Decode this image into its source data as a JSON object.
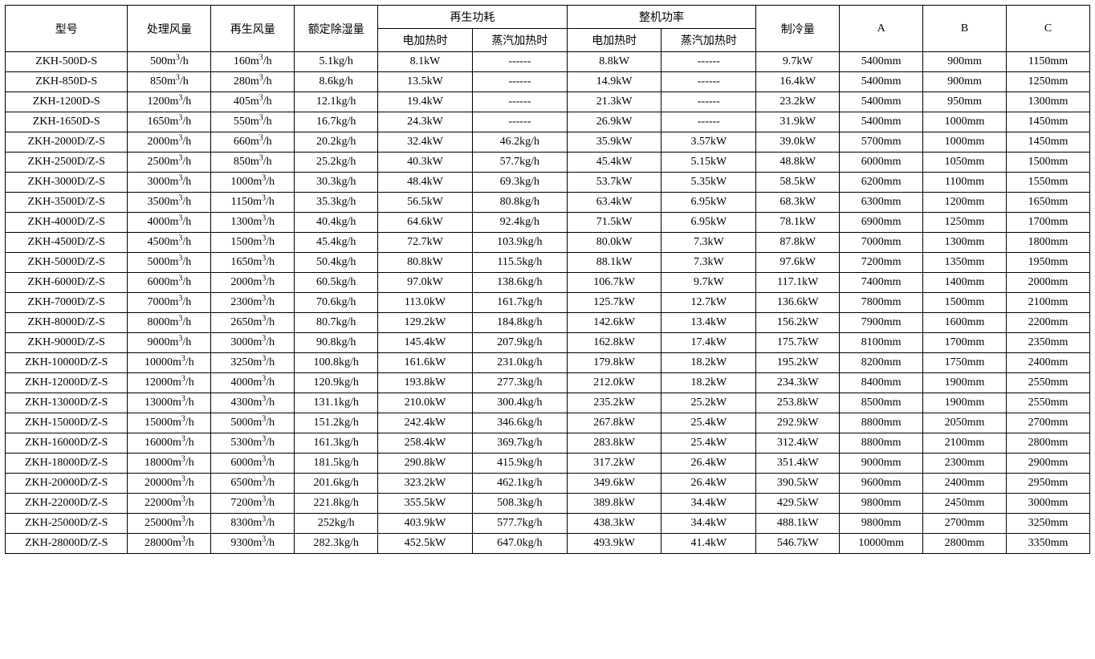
{
  "headers": {
    "model": "型号",
    "processAir": "处理风量",
    "regenAir": "再生风量",
    "ratedDehum": "额定除湿量",
    "regenPowerGroup": "再生功耗",
    "regenElectric": "电加热时",
    "regenSteam": "蒸汽加热时",
    "totalPowerGroup": "整机功率",
    "totalElectric": "电加热时",
    "totalSteam": "蒸汽加热时",
    "cooling": "制冷量",
    "dimA": "A",
    "dimB": "B",
    "dimC": "C"
  },
  "units": {
    "m3h_prefix": "m",
    "m3h_sup": "3",
    "m3h_suffix": "/h",
    "dash": "------"
  },
  "rows": [
    {
      "model": "ZKH-500D-S",
      "proc": "500",
      "regen": "160",
      "dehum": "5.1kg/h",
      "re": "8.1kW",
      "rs": "------",
      "te": "8.8kW",
      "ts": "------",
      "cool": "9.7kW",
      "a": "5400mm",
      "b": "900mm",
      "c": "1150mm"
    },
    {
      "model": "ZKH-850D-S",
      "proc": "850",
      "regen": "280",
      "dehum": "8.6kg/h",
      "re": "13.5kW",
      "rs": "------",
      "te": "14.9kW",
      "ts": "------",
      "cool": "16.4kW",
      "a": "5400mm",
      "b": "900mm",
      "c": "1250mm"
    },
    {
      "model": "ZKH-1200D-S",
      "proc": "1200",
      "regen": "405",
      "dehum": "12.1kg/h",
      "re": "19.4kW",
      "rs": "------",
      "te": "21.3kW",
      "ts": "------",
      "cool": "23.2kW",
      "a": "5400mm",
      "b": "950mm",
      "c": "1300mm"
    },
    {
      "model": "ZKH-1650D-S",
      "proc": "1650",
      "regen": "550",
      "dehum": "16.7kg/h",
      "re": "24.3kW",
      "rs": "------",
      "te": "26.9kW",
      "ts": "------",
      "cool": "31.9kW",
      "a": "5400mm",
      "b": "1000mm",
      "c": "1450mm"
    },
    {
      "model": "ZKH-2000D/Z-S",
      "proc": "2000",
      "regen": "660",
      "dehum": "20.2kg/h",
      "re": "32.4kW",
      "rs": "46.2kg/h",
      "te": "35.9kW",
      "ts": "3.57kW",
      "cool": "39.0kW",
      "a": "5700mm",
      "b": "1000mm",
      "c": "1450mm"
    },
    {
      "model": "ZKH-2500D/Z-S",
      "proc": "2500",
      "regen": "850",
      "dehum": "25.2kg/h",
      "re": "40.3kW",
      "rs": "57.7kg/h",
      "te": "45.4kW",
      "ts": "5.15kW",
      "cool": "48.8kW",
      "a": "6000mm",
      "b": "1050mm",
      "c": "1500mm"
    },
    {
      "model": "ZKH-3000D/Z-S",
      "proc": "3000",
      "regen": "1000",
      "dehum": "30.3kg/h",
      "re": "48.4kW",
      "rs": "69.3kg/h",
      "te": "53.7kW",
      "ts": "5.35kW",
      "cool": "58.5kW",
      "a": "6200mm",
      "b": "1100mm",
      "c": "1550mm"
    },
    {
      "model": "ZKH-3500D/Z-S",
      "proc": "3500",
      "regen": "1150",
      "dehum": "35.3kg/h",
      "re": "56.5kW",
      "rs": "80.8kg/h",
      "te": "63.4kW",
      "ts": "6.95kW",
      "cool": "68.3kW",
      "a": "6300mm",
      "b": "1200mm",
      "c": "1650mm"
    },
    {
      "model": "ZKH-4000D/Z-S",
      "proc": "4000",
      "regen": "1300",
      "dehum": "40.4kg/h",
      "re": "64.6kW",
      "rs": "92.4kg/h",
      "te": "71.5kW",
      "ts": "6.95kW",
      "cool": "78.1kW",
      "a": "6900mm",
      "b": "1250mm",
      "c": "1700mm"
    },
    {
      "model": "ZKH-4500D/Z-S",
      "proc": "4500",
      "regen": "1500",
      "dehum": "45.4kg/h",
      "re": "72.7kW",
      "rs": "103.9kg/h",
      "te": "80.0kW",
      "ts": "7.3kW",
      "cool": "87.8kW",
      "a": "7000mm",
      "b": "1300mm",
      "c": "1800mm"
    },
    {
      "model": "ZKH-5000D/Z-S",
      "proc": "5000",
      "regen": "1650",
      "dehum": "50.4kg/h",
      "re": "80.8kW",
      "rs": "115.5kg/h",
      "te": "88.1kW",
      "ts": "7.3kW",
      "cool": "97.6kW",
      "a": "7200mm",
      "b": "1350mm",
      "c": "1950mm"
    },
    {
      "model": "ZKH-6000D/Z-S",
      "proc": "6000",
      "regen": "2000",
      "dehum": "60.5kg/h",
      "re": "97.0kW",
      "rs": "138.6kg/h",
      "te": "106.7kW",
      "ts": "9.7kW",
      "cool": "117.1kW",
      "a": "7400mm",
      "b": "1400mm",
      "c": "2000mm"
    },
    {
      "model": "ZKH-7000D/Z-S",
      "proc": "7000",
      "regen": "2300",
      "dehum": "70.6kg/h",
      "re": "113.0kW",
      "rs": "161.7kg/h",
      "te": "125.7kW",
      "ts": "12.7kW",
      "cool": "136.6kW",
      "a": "7800mm",
      "b": "1500mm",
      "c": "2100mm"
    },
    {
      "model": "ZKH-8000D/Z-S",
      "proc": "8000",
      "regen": "2650",
      "dehum": "80.7kg/h",
      "re": "129.2kW",
      "rs": "184.8kg/h",
      "te": "142.6kW",
      "ts": "13.4kW",
      "cool": "156.2kW",
      "a": "7900mm",
      "b": "1600mm",
      "c": "2200mm"
    },
    {
      "model": "ZKH-9000D/Z-S",
      "proc": "9000",
      "regen": "3000",
      "dehum": "90.8kg/h",
      "re": "145.4kW",
      "rs": "207.9kg/h",
      "te": "162.8kW",
      "ts": "17.4kW",
      "cool": "175.7kW",
      "a": "8100mm",
      "b": "1700mm",
      "c": "2350mm"
    },
    {
      "model": "ZKH-10000D/Z-S",
      "proc": "10000",
      "regen": "3250",
      "dehum": "100.8kg/h",
      "re": "161.6kW",
      "rs": "231.0kg/h",
      "te": "179.8kW",
      "ts": "18.2kW",
      "cool": "195.2kW",
      "a": "8200mm",
      "b": "1750mm",
      "c": "2400mm"
    },
    {
      "model": "ZKH-12000D/Z-S",
      "proc": "12000",
      "regen": "4000",
      "dehum": "120.9kg/h",
      "re": "193.8kW",
      "rs": "277.3kg/h",
      "te": "212.0kW",
      "ts": "18.2kW",
      "cool": "234.3kW",
      "a": "8400mm",
      "b": "1900mm",
      "c": "2550mm"
    },
    {
      "model": "ZKH-13000D/Z-S",
      "proc": "13000",
      "regen": "4300",
      "dehum": "131.1kg/h",
      "re": "210.0kW",
      "rs": "300.4kg/h",
      "te": "235.2kW",
      "ts": "25.2kW",
      "cool": "253.8kW",
      "a": "8500mm",
      "b": "1900mm",
      "c": "2550mm"
    },
    {
      "model": "ZKH-15000D/Z-S",
      "proc": "15000",
      "regen": "5000",
      "dehum": "151.2kg/h",
      "re": "242.4kW",
      "rs": "346.6kg/h",
      "te": "267.8kW",
      "ts": "25.4kW",
      "cool": "292.9kW",
      "a": "8800mm",
      "b": "2050mm",
      "c": "2700mm"
    },
    {
      "model": "ZKH-16000D/Z-S",
      "proc": "16000",
      "regen": "5300",
      "dehum": "161.3kg/h",
      "re": "258.4kW",
      "rs": "369.7kg/h",
      "te": "283.8kW",
      "ts": "25.4kW",
      "cool": "312.4kW",
      "a": "8800mm",
      "b": "2100mm",
      "c": "2800mm"
    },
    {
      "model": "ZKH-18000D/Z-S",
      "proc": "18000",
      "regen": "6000",
      "dehum": "181.5kg/h",
      "re": "290.8kW",
      "rs": "415.9kg/h",
      "te": "317.2kW",
      "ts": "26.4kW",
      "cool": "351.4kW",
      "a": "9000mm",
      "b": "2300mm",
      "c": "2900mm"
    },
    {
      "model": "ZKH-20000D/Z-S",
      "proc": "20000",
      "regen": "6500",
      "dehum": "201.6kg/h",
      "re": "323.2kW",
      "rs": "462.1kg/h",
      "te": "349.6kW",
      "ts": "26.4kW",
      "cool": "390.5kW",
      "a": "9600mm",
      "b": "2400mm",
      "c": "2950mm"
    },
    {
      "model": "ZKH-22000D/Z-S",
      "proc": "22000",
      "regen": "7200",
      "dehum": "221.8kg/h",
      "re": "355.5kW",
      "rs": "508.3kg/h",
      "te": "389.8kW",
      "ts": "34.4kW",
      "cool": "429.5kW",
      "a": "9800mm",
      "b": "2450mm",
      "c": "3000mm"
    },
    {
      "model": "ZKH-25000D/Z-S",
      "proc": "25000",
      "regen": "8300",
      "dehum": "252kg/h",
      "re": "403.9kW",
      "rs": "577.7kg/h",
      "te": "438.3kW",
      "ts": "34.4kW",
      "cool": "488.1kW",
      "a": "9800mm",
      "b": "2700mm",
      "c": "3250mm"
    },
    {
      "model": "ZKH-28000D/Z-S",
      "proc": "28000",
      "regen": "9300",
      "dehum": "282.3kg/h",
      "re": "452.5kW",
      "rs": "647.0kg/h",
      "te": "493.9kW",
      "ts": "41.4kW",
      "cool": "546.7kW",
      "a": "10000mm",
      "b": "2800mm",
      "c": "3350mm"
    }
  ]
}
